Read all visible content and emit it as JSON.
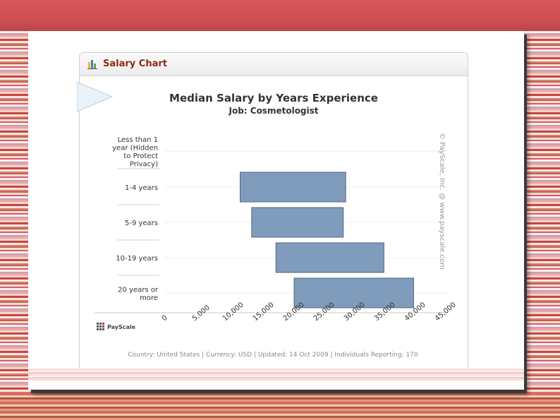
{
  "panel": {
    "title": "Salary Chart",
    "icon": "bar-chart-icon"
  },
  "branding": {
    "logo_text": "PayScale",
    "copyright": "© PayScale, Inc. @ www.payscale.com"
  },
  "footer": {
    "note": "Country: United States | Currency: USD | Updated: 14 Oct 2009 | Individuals Reporting: 170"
  },
  "colors": {
    "bar_fill": "#7f9cbc",
    "bar_stroke": "#55657a",
    "title_text": "#8f2a12",
    "chart_title": "#333333"
  },
  "chart_data": {
    "type": "bar",
    "orientation": "horizontal-range",
    "title": "Median Salary by Years Experience",
    "subtitle": "Job: Cosmetologist",
    "categories": [
      [
        "Less than 1",
        "year (Hidden",
        "to Protect",
        "Privacy)"
      ],
      [
        "1-4 years"
      ],
      [
        "5-9 years"
      ],
      [
        "10-19 years"
      ],
      [
        "20 years or",
        "more"
      ]
    ],
    "ranges": [
      null,
      [
        12500,
        29900
      ],
      [
        14400,
        29500
      ],
      [
        18400,
        36200
      ],
      [
        21400,
        41100
      ]
    ],
    "xlim": [
      0,
      45000
    ],
    "xticks": [
      "0",
      "5,000",
      "10,000",
      "15,000",
      "20,000",
      "25,000",
      "30,000",
      "35,000",
      "40,000",
      "45,000"
    ],
    "grid": true
  }
}
